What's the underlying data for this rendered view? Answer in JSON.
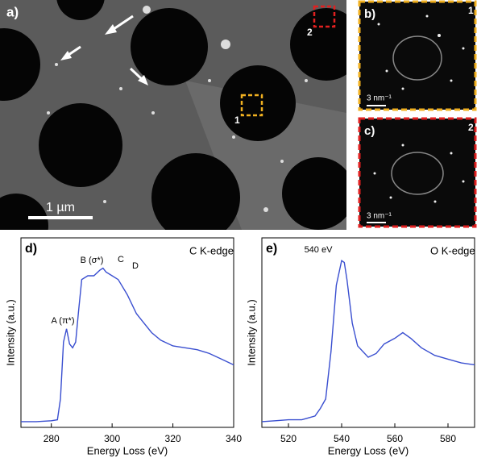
{
  "panels": {
    "a": {
      "label": "a)",
      "region1": "1",
      "region2": "2",
      "scale": "1 µm"
    },
    "b": {
      "label": "b)",
      "region": "1",
      "scale": "3 nm⁻¹"
    },
    "c": {
      "label": "c)",
      "region": "2",
      "scale": "3 nm⁻¹"
    }
  },
  "chart_data": [
    {
      "type": "line",
      "label": "d)",
      "xlabel": "Energy Loss (eV)",
      "ylabel": "Intensity (a.u.)",
      "color": "#3a4fd0",
      "annotations": [
        "C K-edge",
        "A (π*)",
        "B (σ*)",
        "C",
        "D"
      ],
      "xlim": [
        270,
        340
      ],
      "xticks": [
        280,
        300,
        320,
        340
      ],
      "ylim": [
        0,
        1
      ],
      "x": [
        270,
        275,
        280,
        282,
        283,
        284,
        285,
        286,
        287,
        288,
        289,
        290,
        292,
        294,
        296,
        297,
        298,
        300,
        302,
        305,
        308,
        310,
        313,
        316,
        320,
        324,
        328,
        332,
        336,
        340
      ],
      "values": [
        0.03,
        0.03,
        0.035,
        0.04,
        0.15,
        0.45,
        0.52,
        0.44,
        0.42,
        0.45,
        0.62,
        0.78,
        0.8,
        0.8,
        0.83,
        0.84,
        0.82,
        0.8,
        0.78,
        0.7,
        0.6,
        0.56,
        0.5,
        0.46,
        0.43,
        0.42,
        0.41,
        0.39,
        0.36,
        0.33
      ]
    },
    {
      "type": "line",
      "label": "e)",
      "xlabel": "Energy Loss (eV)",
      "ylabel": "Intensity (a.u.)",
      "color": "#3a4fd0",
      "annotations": [
        "540 eV",
        "O K-edge"
      ],
      "xlim": [
        510,
        590
      ],
      "xticks": [
        520,
        540,
        560,
        580
      ],
      "ylim": [
        0,
        1
      ],
      "x": [
        510,
        515,
        520,
        525,
        530,
        532,
        534,
        536,
        538,
        540,
        541,
        542,
        544,
        546,
        548,
        550,
        553,
        556,
        560,
        563,
        566,
        570,
        575,
        580,
        585,
        590
      ],
      "values": [
        0.03,
        0.035,
        0.04,
        0.04,
        0.06,
        0.1,
        0.15,
        0.4,
        0.75,
        0.88,
        0.87,
        0.78,
        0.55,
        0.43,
        0.4,
        0.37,
        0.39,
        0.44,
        0.47,
        0.5,
        0.47,
        0.42,
        0.38,
        0.36,
        0.34,
        0.33
      ]
    }
  ]
}
